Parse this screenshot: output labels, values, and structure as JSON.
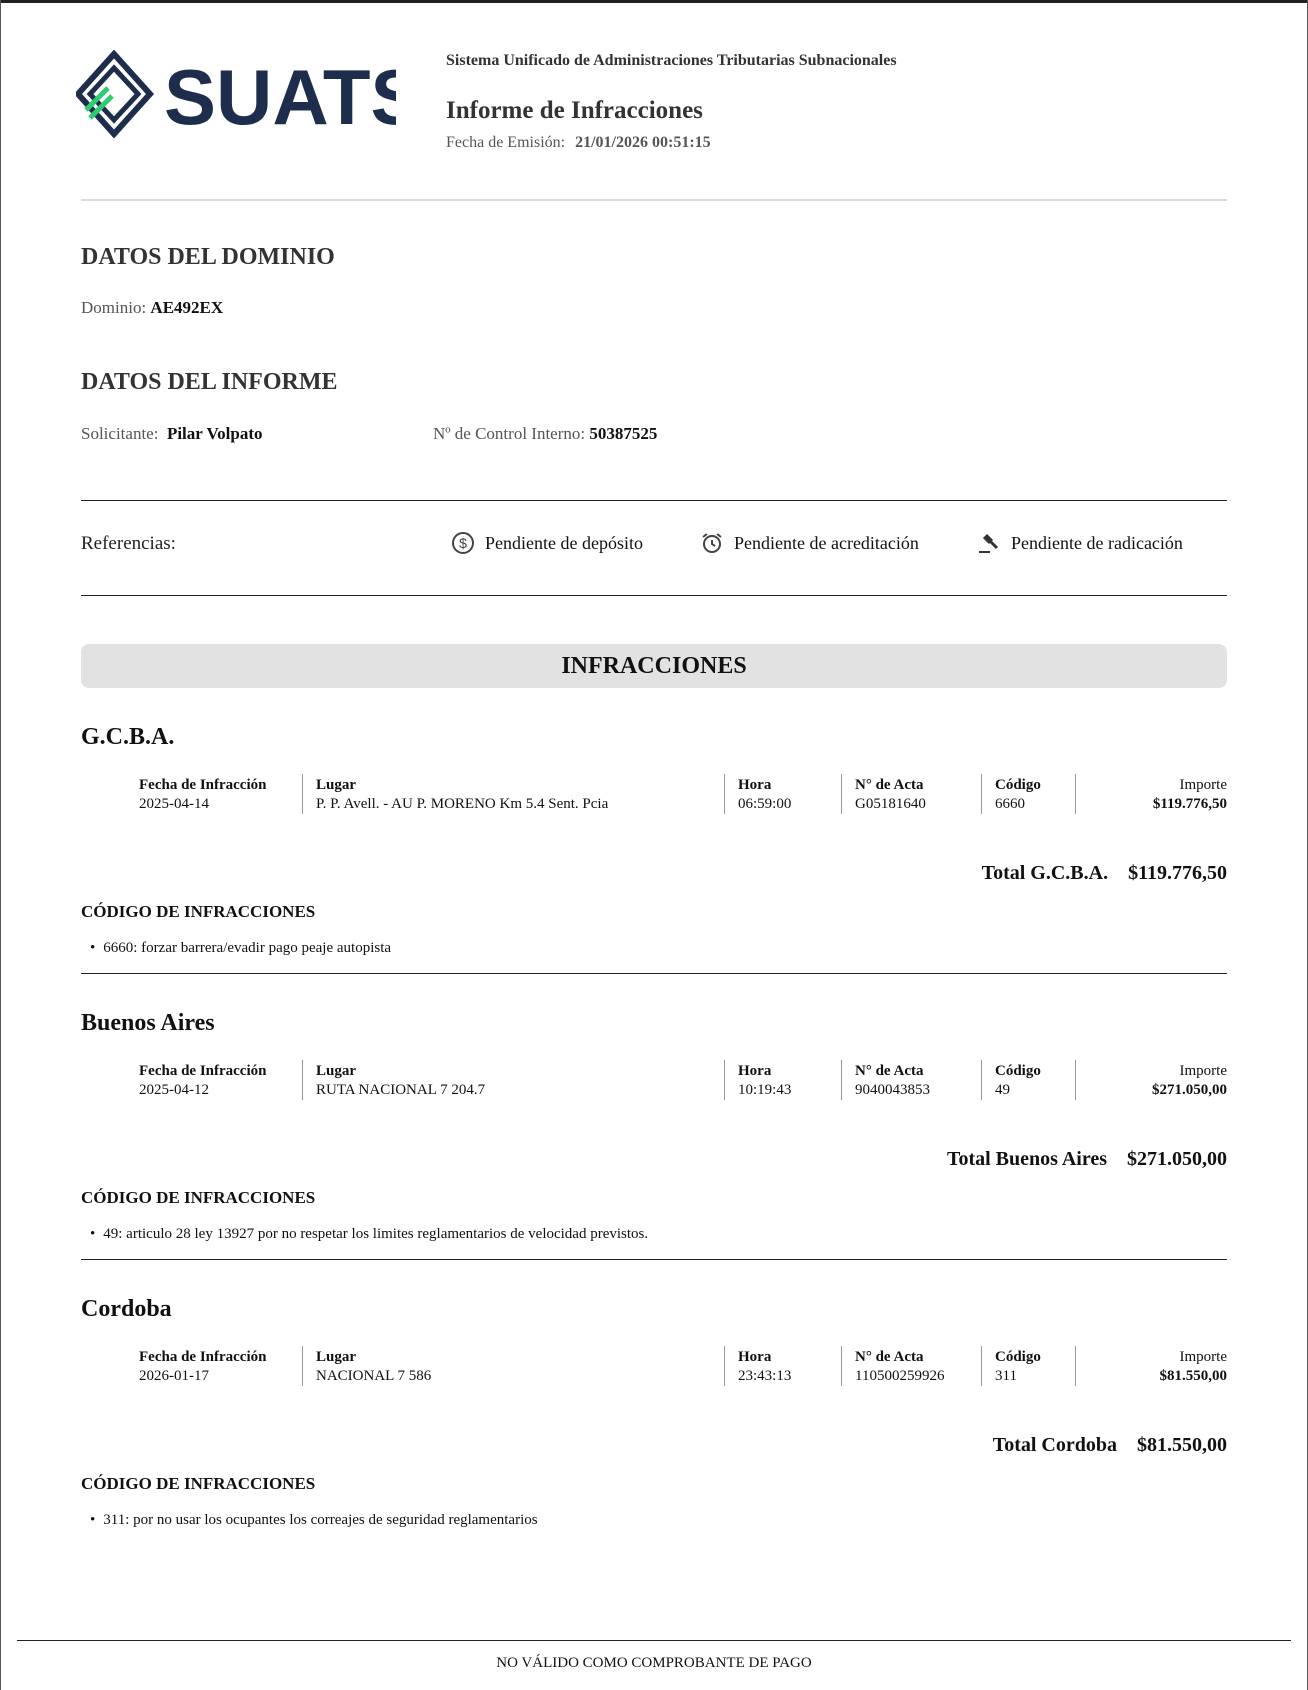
{
  "header": {
    "logo_text": "SUATS",
    "system_name": "Sistema Unificado de Administraciones Tributarias Subnacionales",
    "title": "Informe de Infracciones",
    "date_label": "Fecha de Emisión:",
    "date_value": "21/01/2026 00:51:15"
  },
  "dominio": {
    "heading": "DATOS DEL DOMINIO",
    "label": "Dominio:",
    "value": "AE492EX"
  },
  "informe": {
    "heading": "DATOS DEL INFORME",
    "solicitante_label": "Solicitante:",
    "solicitante": "Pilar Volpato",
    "control_label": "Nº de Control Interno:",
    "control": "50387525"
  },
  "referencias": {
    "label": "Referencias:",
    "items": [
      {
        "icon": "dollar-circle-icon",
        "label": "Pendiente de depósito"
      },
      {
        "icon": "alarm-clock-icon",
        "label": "Pendiente de acreditación"
      },
      {
        "icon": "gavel-icon",
        "label": "Pendiente de radicación"
      }
    ]
  },
  "banner": "INFRACCIONES",
  "columns": {
    "fecha": "Fecha de Infracción",
    "lugar": "Lugar",
    "hora": "Hora",
    "acta": "N° de Acta",
    "codigo": "Código",
    "importe": "Importe"
  },
  "codes_heading": "CÓDIGO DE INFRACCIONES",
  "sections": [
    {
      "name": "G.C.B.A.",
      "fecha": "2025-04-14",
      "lugar": "P. P. Avell. - AU P. MORENO Km 5.4 Sent. Pcia",
      "hora": "06:59:00",
      "acta": "G05181640",
      "codigo": "6660",
      "importe": "$119.776,50",
      "total_label": "Total G.C.B.A.",
      "total": "$119.776,50",
      "code_desc": "6660: forzar barrera/evadir pago peaje autopista"
    },
    {
      "name": "Buenos Aires",
      "fecha": "2025-04-12",
      "lugar": "RUTA NACIONAL 7 204.7",
      "hora": "10:19:43",
      "acta": "9040043853",
      "codigo": "49",
      "importe": "$271.050,00",
      "total_label": "Total Buenos Aires",
      "total": "$271.050,00",
      "code_desc": "49: articulo 28 ley 13927 por no respetar los limites reglamentarios de velocidad previstos."
    },
    {
      "name": "Cordoba",
      "fecha": "2026-01-17",
      "lugar": "NACIONAL 7 586",
      "hora": "23:43:13",
      "acta": "110500259926",
      "codigo": "311",
      "importe": "$81.550,00",
      "total_label": "Total Cordoba",
      "total": "$81.550,00",
      "code_desc": "311: por no usar los ocupantes los correajes de seguridad reglamentarios"
    }
  ],
  "footer": "NO VÁLIDO COMO COMPROBANTE DE PAGO",
  "colors": {
    "brand_navy": "#1f2d4d",
    "brand_green": "#2ecc71"
  }
}
